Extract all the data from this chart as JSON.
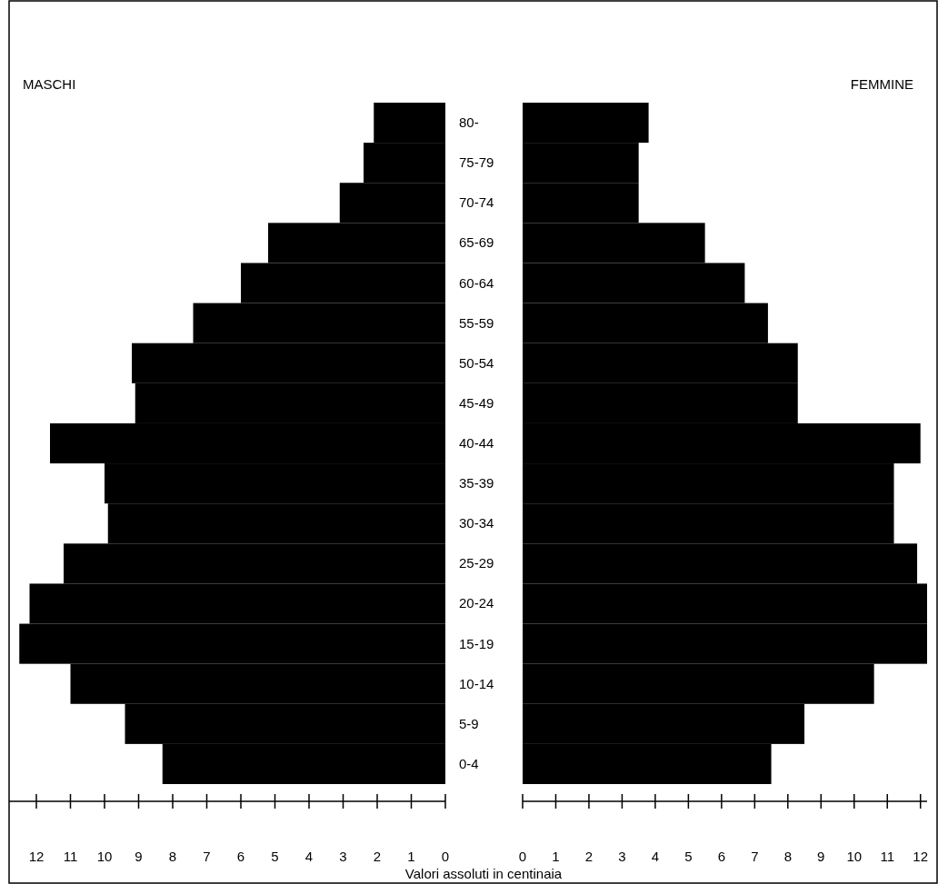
{
  "chart_data": [
    {
      "type": "bar",
      "orientation": "horizontal",
      "title": "MASCHI",
      "xlabel": "Valori assoluti in centinaia",
      "categories": [
        "80-",
        "75-79",
        "70-74",
        "65-69",
        "60-64",
        "55-59",
        "50-54",
        "45-49",
        "40-44",
        "35-39",
        "30-34",
        "25-29",
        "20-24",
        "15-19",
        "10-14",
        "5-9",
        "0-4"
      ],
      "values": [
        2.1,
        2.4,
        3.1,
        5.2,
        6.0,
        7.4,
        9.2,
        9.1,
        11.6,
        10.0,
        9.9,
        11.2,
        12.2,
        12.5,
        11.0,
        9.4,
        8.3
      ],
      "color": "#000000",
      "xlim": [
        12.8,
        0
      ],
      "xticks": [
        12,
        11,
        10,
        9,
        8,
        7,
        6,
        5,
        4,
        3,
        2,
        1,
        0
      ]
    },
    {
      "type": "bar",
      "orientation": "horizontal",
      "title": "FEMMINE",
      "categories": [
        null,
        null,
        null,
        null,
        null,
        null,
        null,
        null,
        null,
        null,
        null,
        null,
        null,
        null,
        null,
        null,
        null
      ],
      "values": [
        3.8,
        3.5,
        3.5,
        5.5,
        6.7,
        7.4,
        8.3,
        8.3,
        12.0,
        11.2,
        11.2,
        11.9,
        12.2,
        12.2,
        10.6,
        8.5,
        7.5
      ],
      "color": "#000000",
      "xlim": [
        0,
        12.2
      ],
      "xticks": [
        0,
        1,
        2,
        3,
        4,
        5,
        6,
        7,
        8,
        9,
        10,
        11,
        12
      ],
      "tick_labels": "x"
    }
  ]
}
